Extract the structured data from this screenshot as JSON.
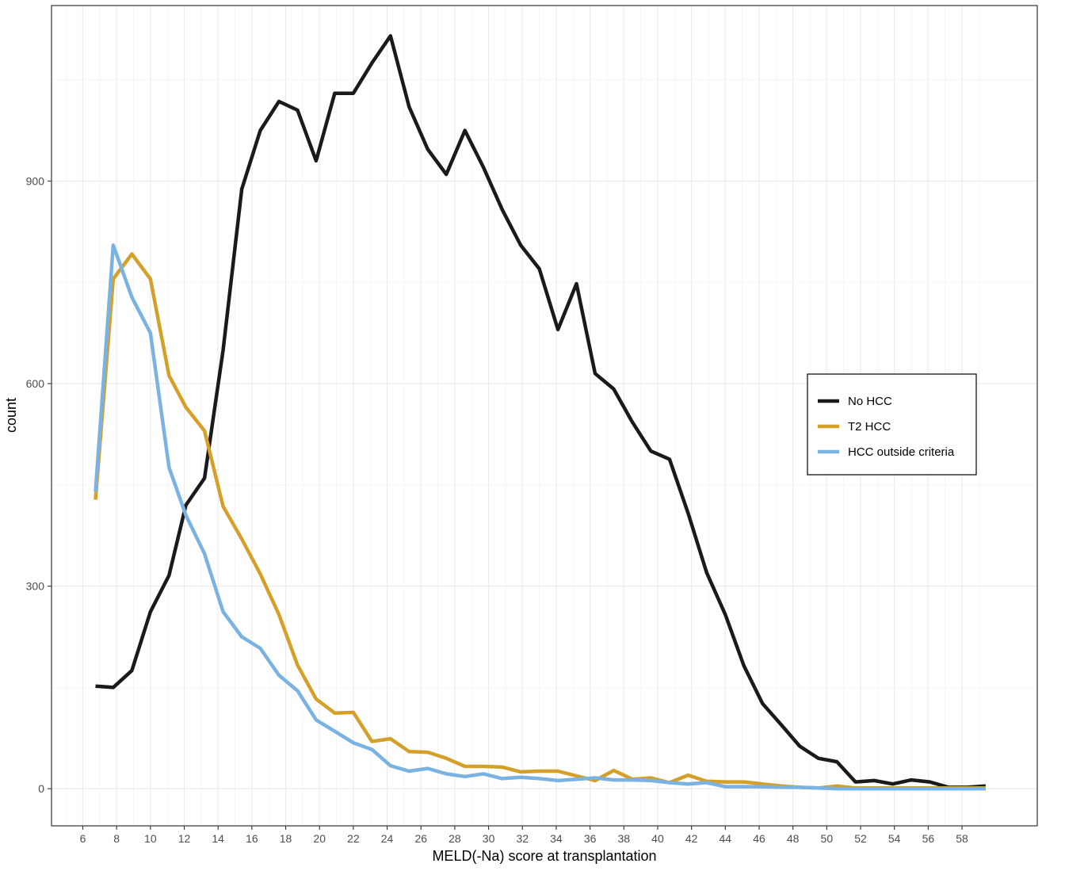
{
  "chart_data": {
    "type": "line",
    "xlabel": "MELD(-Na) score at transplantation",
    "ylabel": "count",
    "xlim": [
      4.15,
      62.45
    ],
    "ylim": [
      -55,
      1160
    ],
    "x_ticks": [
      6,
      8,
      10,
      12,
      14,
      16,
      18,
      20,
      22,
      24,
      26,
      28,
      30,
      32,
      34,
      36,
      38,
      40,
      42,
      44,
      46,
      48,
      50,
      52,
      54,
      56,
      58
    ],
    "y_ticks": [
      0,
      300,
      600,
      900
    ],
    "y_minor_ticks": [
      150,
      450,
      750,
      1050
    ],
    "grid": true,
    "legend_position": "right",
    "x": [
      6.75,
      7.8,
      8.9,
      10,
      11.1,
      12.1,
      13.2,
      14.3,
      15.4,
      16.5,
      17.6,
      18.7,
      19.8,
      20.9,
      22,
      23.1,
      24.2,
      25.3,
      26.4,
      27.5,
      28.6,
      29.7,
      30.8,
      31.9,
      33,
      34.1,
      35.2,
      36.3,
      37.4,
      38.5,
      39.6,
      40.7,
      41.8,
      42.9,
      44,
      45.1,
      46.2,
      47.3,
      48.4,
      49.5,
      50.6,
      51.7,
      52.8,
      53.9,
      55,
      56.1,
      57.2,
      58.3,
      59.4
    ],
    "series": [
      {
        "name": "No HCC",
        "color": "#1a1a1a",
        "values": [
          152,
          150,
          175,
          262,
          316,
          420,
          460,
          650,
          888,
          975,
          1018,
          1005,
          930,
          1030,
          1030,
          1075,
          1115,
          1010,
          947,
          910,
          975,
          920,
          858,
          805,
          770,
          680,
          748,
          615,
          592,
          543,
          500,
          488,
          408,
          320,
          258,
          182,
          126,
          95,
          63,
          45,
          40,
          10,
          12,
          7,
          13,
          10,
          2,
          2,
          4
        ]
      },
      {
        "name": "T2 HCC",
        "color": "#d4a02a",
        "values": [
          428,
          755,
          792,
          755,
          612,
          565,
          530,
          418,
          370,
          318,
          258,
          183,
          133,
          112,
          113,
          70,
          74,
          55,
          54,
          45,
          33,
          33,
          32,
          25,
          26,
          26,
          19,
          12,
          27,
          14,
          16,
          9,
          20,
          11,
          10,
          10,
          7,
          4,
          2,
          1,
          4,
          1,
          1,
          1,
          1,
          1,
          1,
          1,
          1
        ]
      },
      {
        "name": "HCC outside criteria",
        "color": "#7ab2e1",
        "values": [
          440,
          805,
          728,
          675,
          476,
          405,
          348,
          262,
          225,
          208,
          168,
          145,
          102,
          85,
          68,
          58,
          34,
          26,
          30,
          22,
          18,
          22,
          15,
          17,
          15,
          12,
          14,
          16,
          13,
          13,
          12,
          9,
          7,
          9,
          3,
          3,
          3,
          2,
          2,
          1,
          0,
          0,
          0,
          0,
          0,
          0,
          0,
          0,
          0
        ]
      }
    ]
  }
}
